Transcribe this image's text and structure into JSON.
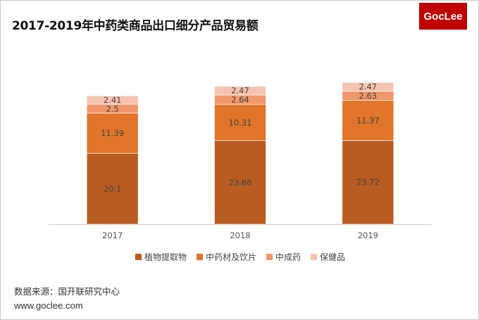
{
  "title": "2017-2019年中药类商品出口细分产品贸易额",
  "logo": "GocLee",
  "source": "数据来源：国开联研究中心",
  "url": "www.goclee.com",
  "chart_data": {
    "type": "bar",
    "stacked": true,
    "title": "2017-2019年中药类商品出口细分产品贸易额",
    "categories": [
      "2017",
      "2018",
      "2019"
    ],
    "series": [
      {
        "name": "植物提取物",
        "values": [
          20.1,
          23.68,
          23.72
        ],
        "color": "#b85c22"
      },
      {
        "name": "中药材及饮片",
        "values": [
          11.39,
          10.31,
          11.37
        ],
        "color": "#e07428"
      },
      {
        "name": "中成药",
        "values": [
          2.5,
          2.64,
          2.63
        ],
        "color": "#f0976a"
      },
      {
        "name": "保健品",
        "values": [
          2.41,
          2.47,
          2.47
        ],
        "color": "#f5c3b0"
      }
    ],
    "legend": "bottom",
    "grid": false,
    "data_labels": true
  }
}
